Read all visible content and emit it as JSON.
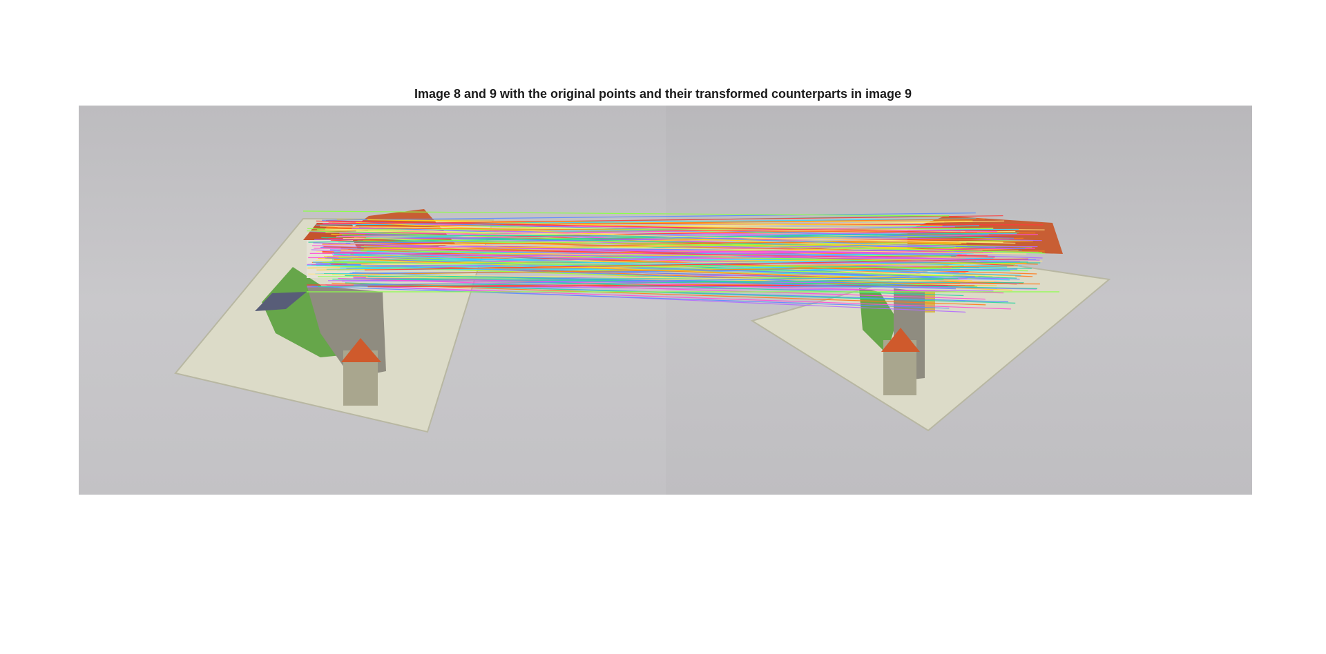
{
  "figure": {
    "title": "Image 8 and 9 with the original points and their transformed counterparts in image 9"
  },
  "images": {
    "left": "image 8",
    "right": "image 9"
  },
  "overlay": {
    "match_count": 180,
    "line_colors": [
      "#ff4fd8",
      "#ffd21f",
      "#39d0ff",
      "#ff7a1a",
      "#8cff4a",
      "#b26bff",
      "#ff3b3b",
      "#2bd4a0",
      "#ffe680",
      "#5a8cff"
    ]
  }
}
